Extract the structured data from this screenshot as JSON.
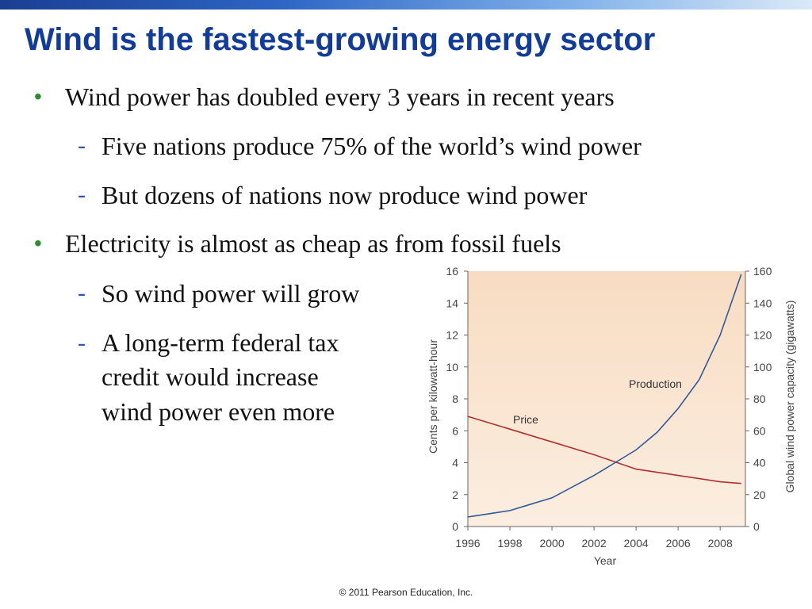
{
  "slide": {
    "title": "Wind is the fastest-growing energy sector",
    "bullets": [
      {
        "text": "Wind power has doubled every 3 years in recent years",
        "subs": [
          "Five nations produce 75% of the world’s wind power",
          "But dozens of nations now produce wind power"
        ]
      },
      {
        "text": "Electricity is almost as cheap as from fossil fuels",
        "subs": [
          "So wind power will grow",
          "A long-term federal tax credit would increase wind power even more"
        ]
      }
    ],
    "sub_lines": {
      "tax1": "A long-term federal tax",
      "tax2": "credit would increase",
      "tax3": "wind power even more"
    },
    "bullet_symbol": "•",
    "dash_symbol": "-",
    "footer": "© 2011 Pearson Education, Inc.",
    "colors": {
      "title": "#123c99",
      "bullet": "#2d8c2d",
      "dash": "#2d55b8",
      "price_line": "#b03030",
      "production_line": "#2f5a9a"
    }
  },
  "chart_data": {
    "type": "line",
    "xlabel": "Year",
    "ylabel_left": "Cents per kilowatt-hour",
    "ylabel_right": "Global wind power capacity (gigawatts)",
    "x_ticks": [
      1996,
      1998,
      2000,
      2002,
      2004,
      2006,
      2008
    ],
    "xlim": [
      1996,
      2009.2
    ],
    "ylim_left": [
      0,
      16
    ],
    "ylim_right": [
      0,
      160
    ],
    "y_ticks_left": [
      0,
      2,
      4,
      6,
      8,
      10,
      12,
      14,
      16
    ],
    "y_ticks_right": [
      0,
      20,
      40,
      60,
      80,
      100,
      120,
      140,
      160
    ],
    "series": [
      {
        "name": "Price",
        "axis": "left",
        "x": [
          1996,
          1998,
          2000,
          2002,
          2004,
          2006,
          2008,
          2009
        ],
        "values": [
          6.9,
          6.1,
          5.3,
          4.5,
          3.6,
          3.2,
          2.8,
          2.7
        ]
      },
      {
        "name": "Production",
        "axis": "right",
        "x": [
          1996,
          1997,
          1998,
          1999,
          2000,
          2001,
          2002,
          2003,
          2004,
          2005,
          2006,
          2007,
          2008,
          2009
        ],
        "values": [
          6,
          8,
          10,
          14,
          18,
          25,
          32,
          40,
          48,
          59,
          74,
          92,
          120,
          158
        ]
      }
    ]
  }
}
